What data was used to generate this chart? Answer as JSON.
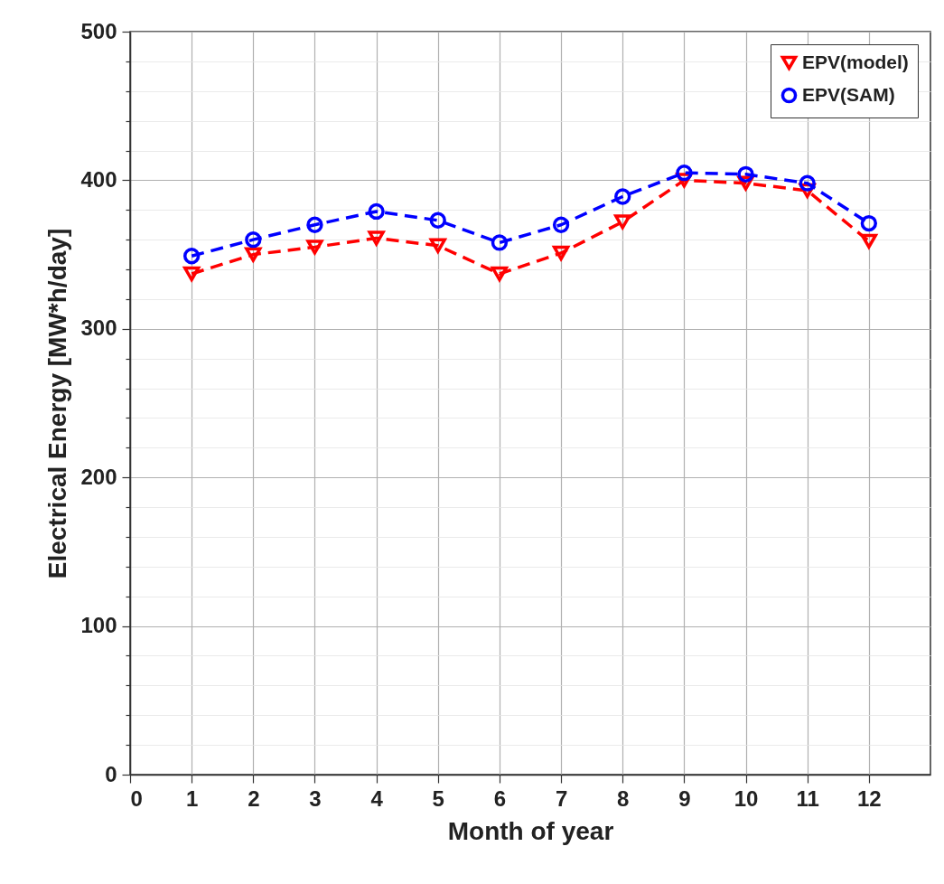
{
  "chart_data": {
    "type": "line",
    "xlabel": "Month of year",
    "ylabel": "Electrical Energy [MW*h/day]",
    "x": [
      1,
      2,
      3,
      4,
      5,
      6,
      7,
      8,
      9,
      10,
      11,
      12
    ],
    "series": [
      {
        "name": "EPV(model)",
        "color": "#ff0000",
        "marker": "triangle",
        "line_style": "dashed",
        "values": [
          337,
          350,
          355,
          361,
          356,
          337,
          351,
          372,
          400,
          398,
          393,
          359
        ]
      },
      {
        "name": "EPV(SAM)",
        "color": "#0000ff",
        "marker": "circle",
        "line_style": "dashed",
        "values": [
          349,
          360,
          370,
          379,
          373,
          358,
          370,
          389,
          405,
          404,
          398,
          371
        ]
      }
    ],
    "xlim": [
      0,
      13
    ],
    "xticks": [
      0,
      1,
      2,
      3,
      4,
      5,
      6,
      7,
      8,
      9,
      10,
      11,
      12
    ],
    "ylim": [
      0,
      500
    ],
    "yticks": [
      0,
      {
        "value": 20,
        "label": null
      },
      {
        "value": 40,
        "label": null
      },
      {
        "value": 60,
        "label": null
      },
      {
        "value": 80,
        "label": null
      },
      100,
      {
        "value": 120,
        "label": null
      },
      {
        "value": 140,
        "label": null
      },
      {
        "value": 160,
        "label": null
      },
      {
        "value": 180,
        "label": null
      },
      200,
      {
        "value": 220,
        "label": null
      },
      {
        "value": 240,
        "label": null
      },
      {
        "value": 260,
        "label": null
      },
      {
        "value": 280,
        "label": null
      },
      300,
      {
        "value": 320,
        "label": null
      },
      {
        "value": 340,
        "label": null
      },
      {
        "value": 360,
        "label": null
      },
      {
        "value": 380,
        "label": null
      },
      400,
      {
        "value": 420,
        "label": null
      },
      {
        "value": 440,
        "label": null
      },
      {
        "value": 460,
        "label": null
      },
      {
        "value": 480,
        "label": null
      },
      500
    ],
    "grid": true,
    "legend": "top right"
  }
}
